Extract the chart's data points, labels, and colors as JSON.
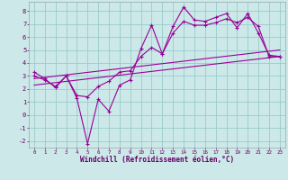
{
  "title": "",
  "xlabel": "Windchill (Refroidissement éolien,°C)",
  "ylabel": "",
  "bg_color": "#cce8e8",
  "line_color": "#990099",
  "grid_color": "#99cccc",
  "xlim": [
    -0.5,
    23.5
  ],
  "ylim": [
    -2.5,
    8.7
  ],
  "yticks": [
    -2,
    -1,
    0,
    1,
    2,
    3,
    4,
    5,
    6,
    7,
    8
  ],
  "xticks": [
    0,
    1,
    2,
    3,
    4,
    5,
    6,
    7,
    8,
    9,
    10,
    11,
    12,
    13,
    14,
    15,
    16,
    17,
    18,
    19,
    20,
    21,
    22,
    23
  ],
  "series1_x": [
    0,
    1,
    2,
    3,
    4,
    5,
    6,
    7,
    8,
    9,
    10,
    11,
    12,
    13,
    14,
    15,
    16,
    17,
    18,
    19,
    20,
    21,
    22,
    23
  ],
  "series1_y": [
    3.3,
    2.8,
    2.1,
    3.0,
    1.3,
    -2.2,
    1.2,
    0.3,
    2.3,
    2.7,
    5.1,
    6.9,
    4.7,
    6.8,
    8.3,
    7.3,
    7.2,
    7.5,
    7.8,
    6.7,
    7.8,
    6.3,
    4.6,
    4.5
  ],
  "series2_x": [
    0,
    1,
    2,
    3,
    4,
    5,
    6,
    7,
    8,
    9,
    10,
    11,
    12,
    13,
    14,
    15,
    16,
    17,
    18,
    19,
    20,
    21,
    22,
    23
  ],
  "series2_y": [
    3.0,
    2.7,
    2.2,
    3.0,
    1.5,
    1.4,
    2.2,
    2.6,
    3.3,
    3.4,
    4.5,
    5.2,
    4.7,
    6.3,
    7.2,
    6.9,
    6.9,
    7.1,
    7.4,
    7.1,
    7.5,
    6.8,
    4.5,
    4.5
  ],
  "series3_x": [
    0,
    23
  ],
  "series3_y": [
    2.3,
    4.5
  ],
  "series4_x": [
    0,
    23
  ],
  "series4_y": [
    2.8,
    5.0
  ]
}
